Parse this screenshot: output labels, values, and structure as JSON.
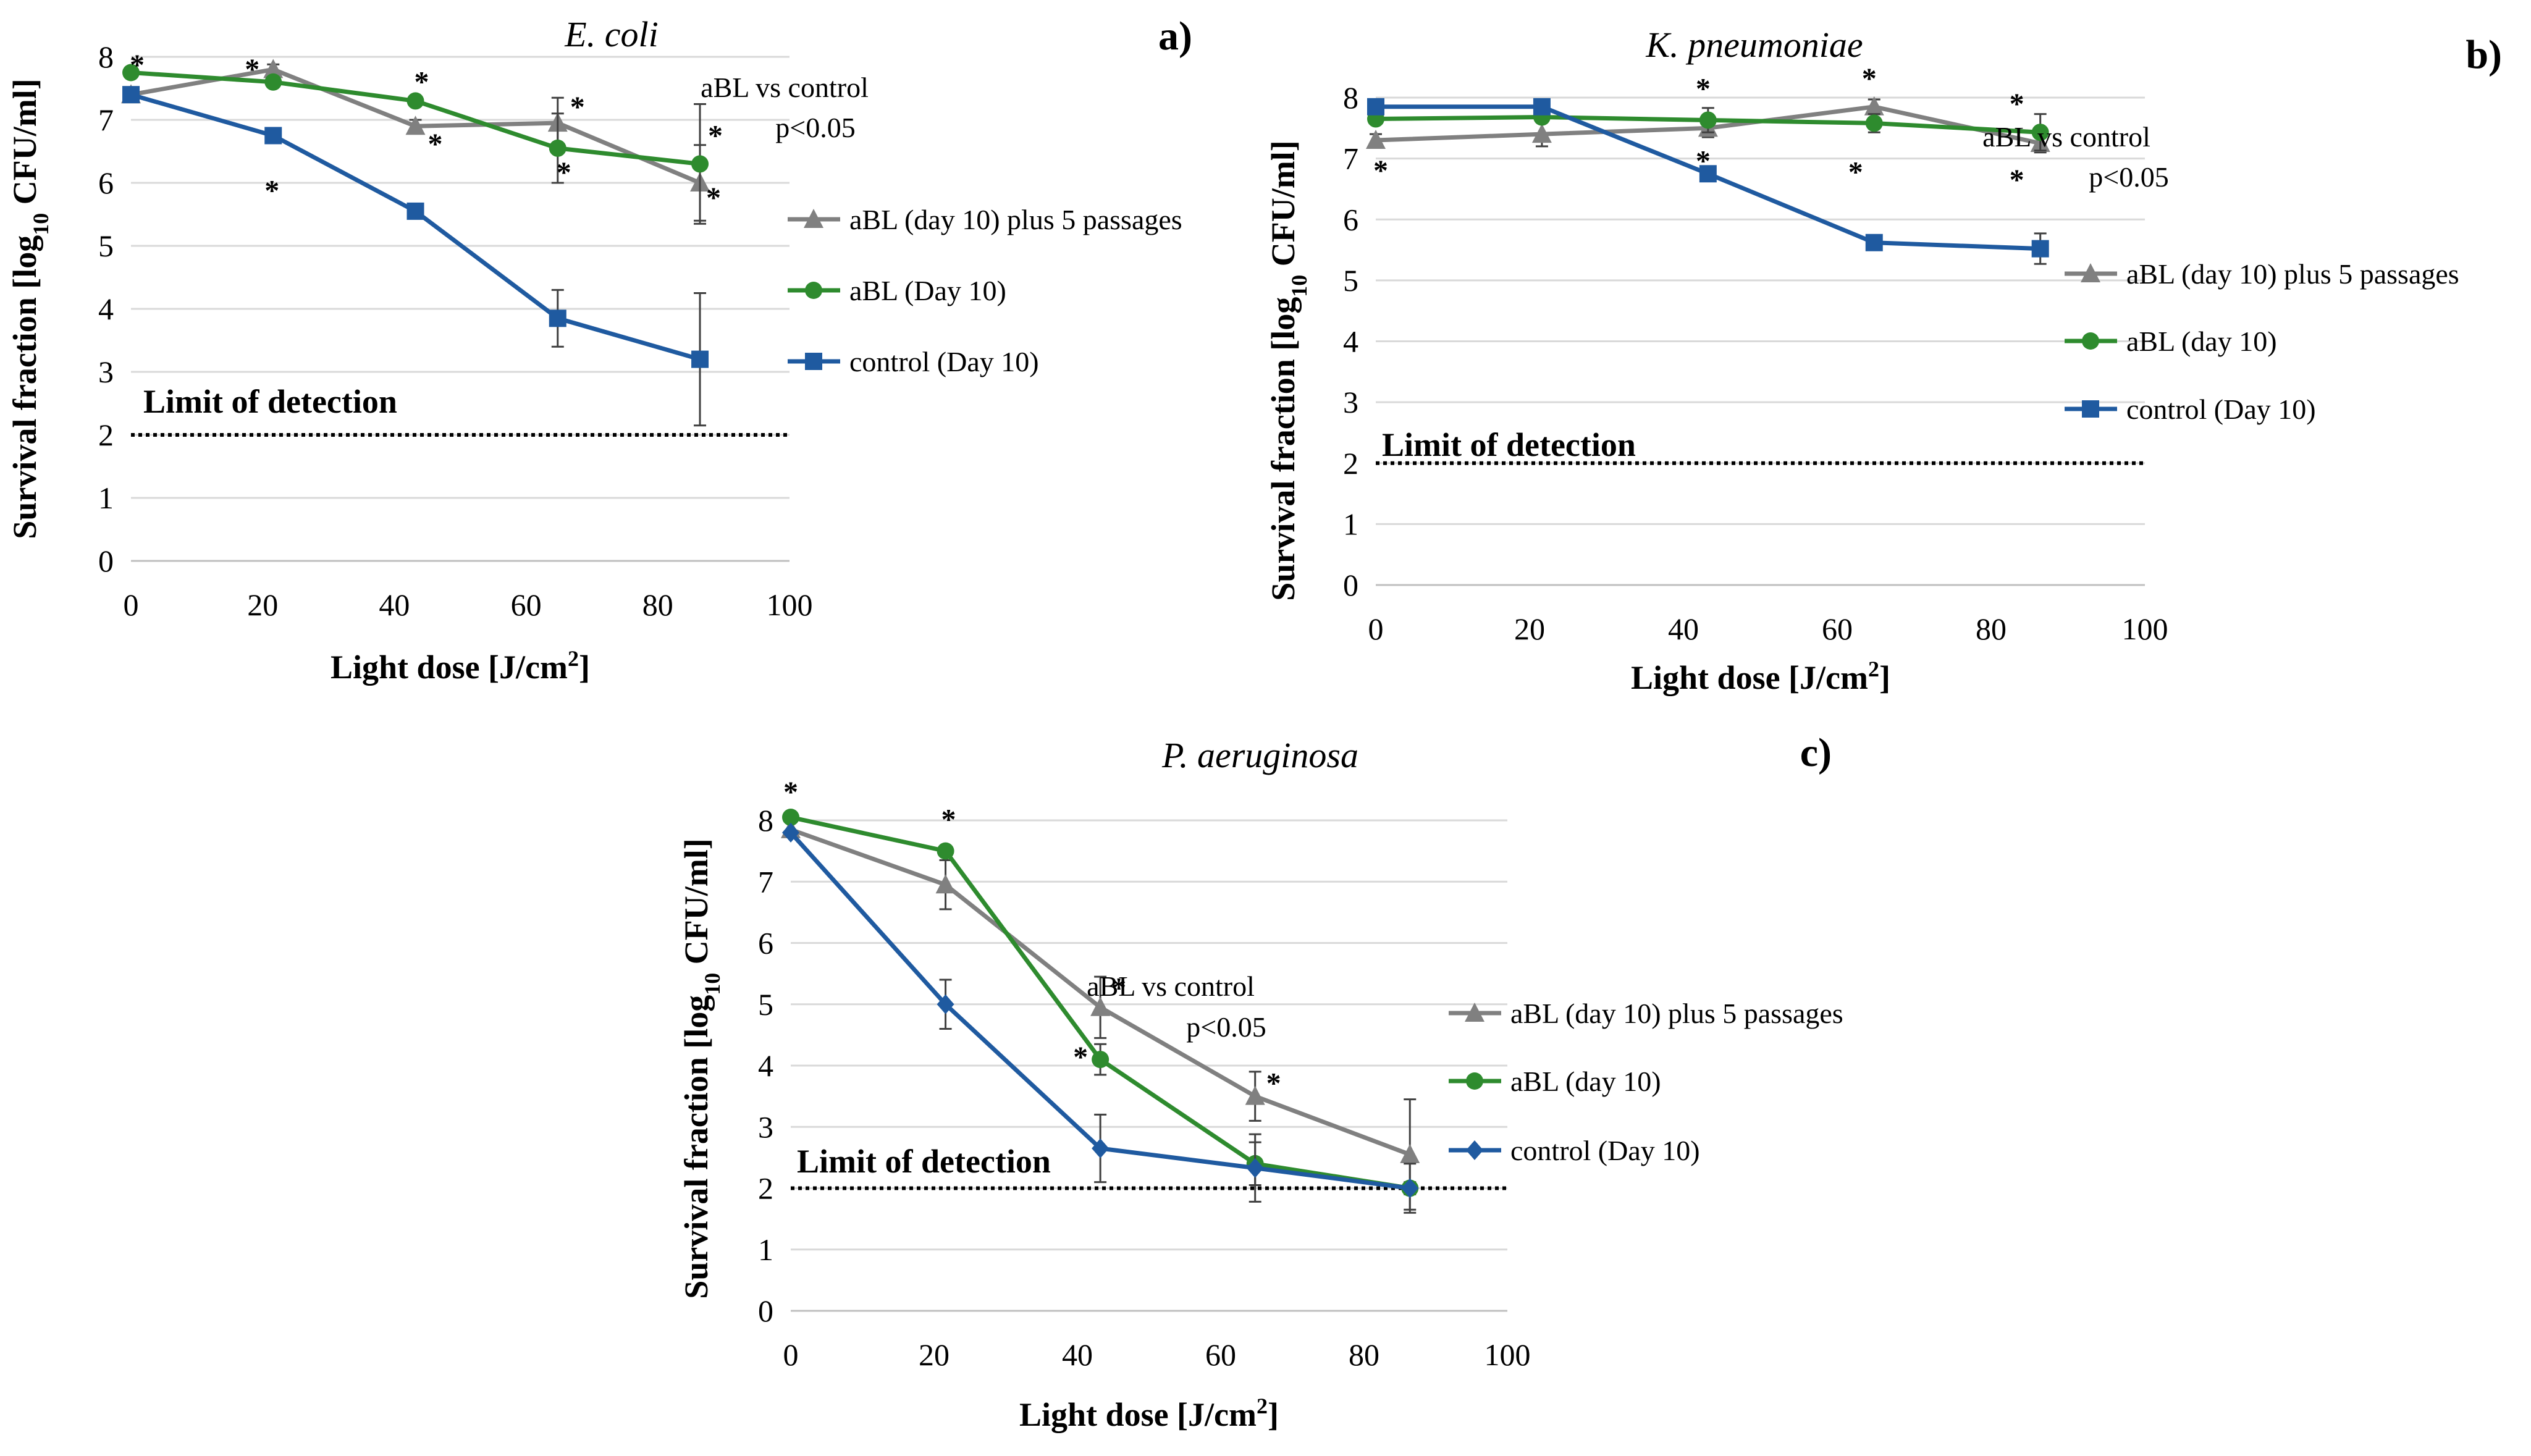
{
  "figure": {
    "ylabel_main": "Survival fraction [log",
    "ylabel_sub": "10",
    "ylabel_end": " CFU/ml]",
    "xlabel_main": "Light dose [J/cm",
    "xlabel_sup": "2",
    "xlabel_end": "]",
    "lod_label": "Limit of detection",
    "lod_value": 2,
    "annotation_line1": "aBL vs control",
    "annotation_line2": "p<0.05",
    "star": "*"
  },
  "chart_data": [
    {
      "type": "line",
      "panel_label": "a)",
      "title": "E. coli",
      "xlabel": "Light dose [J/cm2]",
      "ylabel": "Survival fraction [log10 CFU/ml]",
      "xlim": [
        0,
        100
      ],
      "ylim": [
        0,
        8
      ],
      "xticks": [
        "0",
        "20",
        "40",
        "60",
        "80",
        "100"
      ],
      "yticks": [
        "0",
        "1",
        "2",
        "3",
        "4",
        "5",
        "6",
        "7",
        "8"
      ],
      "x": [
        0,
        21.6,
        43.2,
        64.8,
        86.4
      ],
      "series": [
        {
          "name": "aBL (day 10) plus 5 passages",
          "color": "#808080",
          "marker": "triangle",
          "values": [
            7.4,
            7.8,
            6.9,
            6.95,
            6.0
          ],
          "errors": [
            0.05,
            0.08,
            0.1,
            0.4,
            0.6
          ]
        },
        {
          "name": "aBL (Day 10)",
          "color": "#2e8b2e",
          "marker": "circle",
          "values": [
            7.75,
            7.6,
            7.3,
            6.55,
            6.3
          ],
          "errors": [
            0.05,
            0.05,
            0.05,
            0.55,
            0.95
          ]
        },
        {
          "name": "control (Day 10)",
          "color": "#1f5aa0",
          "marker": "square",
          "values": [
            7.4,
            6.75,
            5.55,
            3.85,
            3.2
          ],
          "errors": [
            0.05,
            0.05,
            0.05,
            0.45,
            1.05
          ]
        }
      ],
      "legend": [
        "aBL (day 10) plus 5 passages",
        "aBL (Day 10)",
        "control (Day 10)"
      ]
    },
    {
      "type": "line",
      "panel_label": "b)",
      "title": "K. pneumoniae",
      "xlabel": "Light dose [J/cm2]",
      "ylabel": "Survival fraction [log10 CFU/ml]",
      "xlim": [
        0,
        100
      ],
      "ylim": [
        0,
        8
      ],
      "xticks": [
        "0",
        "20",
        "40",
        "60",
        "80",
        "100"
      ],
      "yticks": [
        "0",
        "1",
        "2",
        "3",
        "4",
        "5",
        "6",
        "7",
        "8"
      ],
      "x": [
        0,
        21.6,
        43.2,
        64.8,
        86.4
      ],
      "series": [
        {
          "name": "aBL (day 10) plus 5 passages",
          "color": "#808080",
          "marker": "triangle",
          "values": [
            7.3,
            7.4,
            7.5,
            7.85,
            7.25
          ],
          "errors": [
            0.1,
            0.2,
            0.15,
            0.12,
            0.15
          ]
        },
        {
          "name": "aBL (day 10)",
          "color": "#2e8b2e",
          "marker": "circle",
          "values": [
            7.65,
            7.68,
            7.63,
            7.58,
            7.43
          ],
          "errors": [
            0.05,
            0.05,
            0.2,
            0.15,
            0.3
          ]
        },
        {
          "name": "control (Day 10)",
          "color": "#1f5aa0",
          "marker": "square",
          "values": [
            7.85,
            7.85,
            6.75,
            5.62,
            5.52
          ],
          "errors": [
            0.05,
            0.05,
            0.05,
            0.05,
            0.25
          ]
        }
      ],
      "legend": [
        "aBL (day 10) plus 5 passages",
        "aBL (day 10)",
        "control (Day 10)"
      ]
    },
    {
      "type": "line",
      "panel_label": "c)",
      "title": "P. aeruginosa",
      "xlabel": "Light dose [J/cm2]",
      "ylabel": "Survival fraction [log10 CFU/ml]",
      "xlim": [
        0,
        100
      ],
      "ylim": [
        0,
        8
      ],
      "xticks": [
        "0",
        "20",
        "40",
        "60",
        "80",
        "100"
      ],
      "yticks": [
        "0",
        "1",
        "2",
        "3",
        "4",
        "5",
        "6",
        "7",
        "8"
      ],
      "x": [
        0,
        21.6,
        43.2,
        64.8,
        86.4
      ],
      "series": [
        {
          "name": "aBL (day 10) plus 5 passages",
          "color": "#808080",
          "marker": "triangle",
          "values": [
            7.85,
            6.95,
            4.95,
            3.5,
            2.55
          ],
          "errors": [
            0.05,
            0.4,
            0.5,
            0.4,
            0.9
          ]
        },
        {
          "name": "aBL (day 10)",
          "color": "#2e8b2e",
          "marker": "circle",
          "values": [
            8.05,
            7.5,
            4.1,
            2.4,
            2.0
          ],
          "errors": [
            0.05,
            0.08,
            0.25,
            0.35,
            0.1
          ]
        },
        {
          "name": "control (Day 10)",
          "color": "#1f5aa0",
          "marker": "diamond",
          "values": [
            7.8,
            5.0,
            2.65,
            2.33,
            2.0
          ],
          "errors": [
            0.05,
            0.4,
            0.55,
            0.55,
            0.4
          ]
        }
      ],
      "legend": [
        "aBL (day 10) plus 5 passages",
        "aBL (day 10)",
        "control (Day 10)"
      ]
    }
  ]
}
